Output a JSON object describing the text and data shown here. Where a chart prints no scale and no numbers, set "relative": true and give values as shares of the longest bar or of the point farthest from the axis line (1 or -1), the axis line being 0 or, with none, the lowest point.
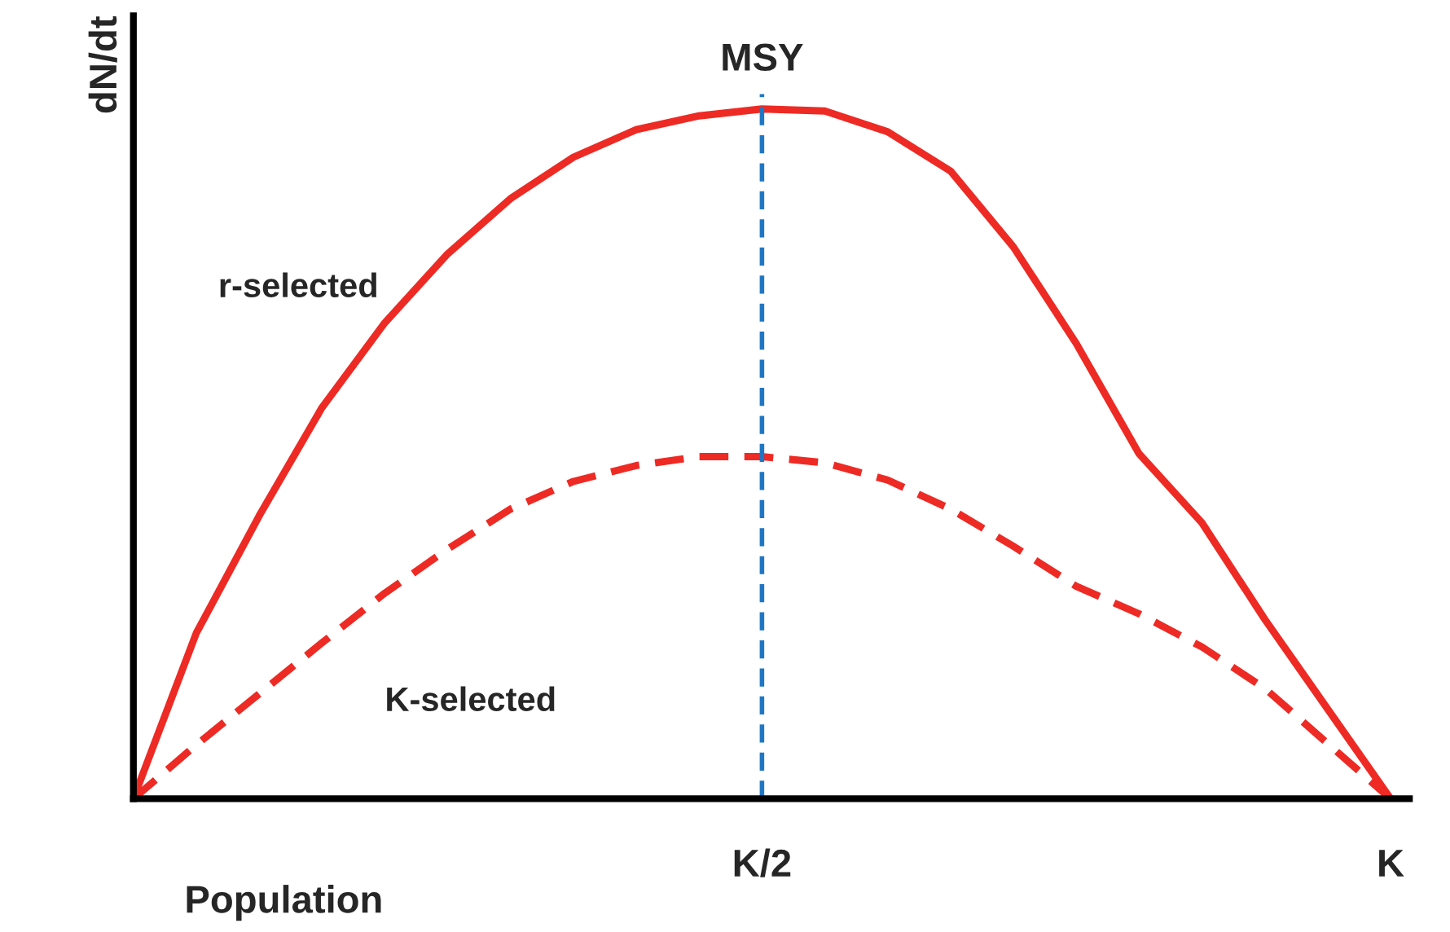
{
  "chart_data": {
    "type": "line",
    "relative": true,
    "xlabel": "Population",
    "ylabel": "dN/dt",
    "categories": [
      null,
      null,
      null,
      null,
      null,
      null,
      null,
      null,
      null,
      null,
      "K/2",
      null,
      null,
      null,
      null,
      null,
      null,
      null,
      null,
      null,
      "K"
    ],
    "tick_labels": "x",
    "grid": false,
    "legend": false,
    "marker": "none",
    "series": [
      {
        "name": "r-selected",
        "color": "#ee2a24",
        "line_style": "solid",
        "values": [
          0,
          0.24,
          0.41,
          0.567,
          0.69,
          0.79,
          0.87,
          0.93,
          0.97,
          0.99,
          1,
          0.997,
          0.967,
          0.91,
          0.8,
          0.66,
          0.5,
          0.4,
          0.26,
          0.13,
          0
        ]
      },
      {
        "name": "K-selected",
        "color": "#ee2a24",
        "line_style": "dashed",
        "values": [
          0,
          0.078,
          0.152,
          0.226,
          0.298,
          0.362,
          0.42,
          0.46,
          0.483,
          0.496,
          0.496,
          0.487,
          0.462,
          0.42,
          0.366,
          0.308,
          0.268,
          0.22,
          0.16,
          0.08,
          0
        ]
      }
    ],
    "ref_lines": [
      {
        "axis": "x",
        "value": "K/2",
        "label": "MSY",
        "color": "#1f77c4",
        "line_style": "dashed"
      }
    ]
  }
}
